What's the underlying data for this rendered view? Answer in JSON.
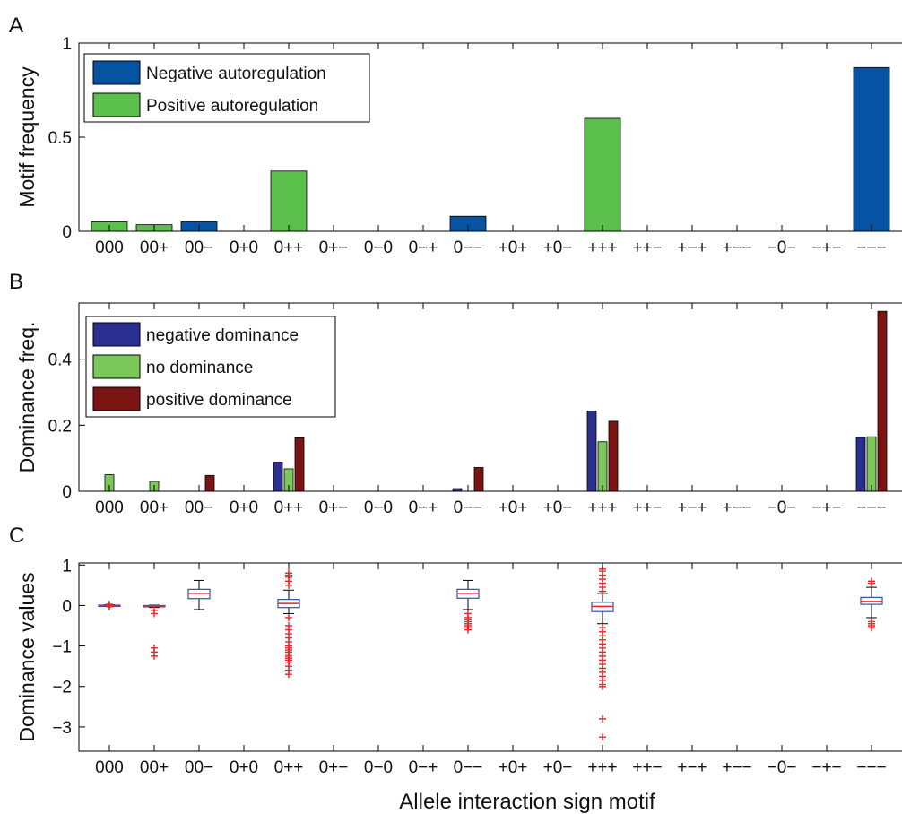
{
  "categories": [
    "000",
    "00+",
    "00−",
    "0+0",
    "0++",
    "0+−",
    "0−0",
    "0−+",
    "0−−",
    "+0+",
    "+0−",
    "+++",
    "++−",
    "+−+",
    "+−−",
    "−0−",
    "−+−",
    "−−−"
  ],
  "chart_data": [
    {
      "panel": "A",
      "type": "bar",
      "ylabel": "Motif frequency",
      "ylim": [
        0,
        1
      ],
      "yticks": [
        0,
        0.5,
        1
      ],
      "ytick_labels": [
        "0",
        "0.5",
        "1"
      ],
      "legend_position": "top-left",
      "series": [
        {
          "name": "Negative autoregulation",
          "color": "#0753a3",
          "values": [
            0,
            0,
            0.05,
            0,
            0,
            0,
            0,
            0,
            0.08,
            0,
            0,
            0,
            0,
            0,
            0,
            0,
            0,
            0.87
          ]
        },
        {
          "name": "Positive autoregulation",
          "color": "#5bbf4b",
          "values": [
            0.05,
            0.035,
            0,
            0,
            0.32,
            0,
            0,
            0,
            0,
            0,
            0,
            0.6,
            0,
            0,
            0,
            0,
            0,
            0
          ]
        }
      ]
    },
    {
      "panel": "B",
      "type": "bar",
      "ylabel": "Dominance freq.",
      "ylim": [
        0,
        0.57
      ],
      "yticks": [
        0,
        0.2,
        0.4
      ],
      "ytick_labels": [
        "0",
        "0.2",
        "0.4"
      ],
      "legend_position": "top-left",
      "series": [
        {
          "name": "negative dominance",
          "color": "#2b2f8f",
          "values": [
            0,
            0,
            0,
            0,
            0.088,
            0,
            0,
            0,
            0.008,
            0,
            0,
            0.243,
            0,
            0,
            0,
            0,
            0,
            0.163
          ]
        },
        {
          "name": "no dominance",
          "color": "#7cc75a",
          "values": [
            0.05,
            0.03,
            0,
            0,
            0.068,
            0,
            0,
            0,
            0,
            0,
            0,
            0.15,
            0,
            0,
            0,
            0,
            0,
            0.165
          ]
        },
        {
          "name": "positive dominance",
          "color": "#7d1414",
          "values": [
            0,
            0,
            0.048,
            0,
            0.162,
            0,
            0,
            0,
            0.072,
            0,
            0,
            0.212,
            0,
            0,
            0,
            0,
            0,
            0.545
          ]
        }
      ]
    },
    {
      "panel": "C",
      "type": "box",
      "ylabel": "Dominance values",
      "xlabel": "Allele interaction sign motif",
      "ylim": [
        -3.6,
        1.05
      ],
      "yticks": [
        1,
        0,
        -1,
        -2,
        -3
      ],
      "ytick_labels": [
        "1",
        "0",
        "−1",
        "−2",
        "−3"
      ],
      "boxes": [
        {
          "index": 0,
          "q1": -0.01,
          "median": 0,
          "q3": 0.01,
          "whisker_low": -0.02,
          "whisker_high": 0.02,
          "outliers": [
            -0.03,
            -0.02,
            0.02,
            0.03
          ]
        },
        {
          "index": 1,
          "q1": -0.03,
          "median": -0.01,
          "q3": 0.0,
          "whisker_low": -0.05,
          "whisker_high": 0.01,
          "outliers": [
            -0.12,
            -0.2,
            -1.05,
            -1.15,
            -1.25
          ]
        },
        {
          "index": 2,
          "q1": 0.17,
          "median": 0.3,
          "q3": 0.4,
          "whisker_low": -0.1,
          "whisker_high": 0.62,
          "outliers": []
        },
        {
          "index": 4,
          "q1": -0.05,
          "median": 0.05,
          "q3": 0.15,
          "whisker_low": -0.2,
          "whisker_high": 0.38,
          "outliers": [
            0.5,
            0.6,
            0.7,
            0.75,
            0.8,
            -0.3,
            -0.5,
            -0.6,
            -0.7,
            -0.8,
            -0.9,
            -1.0,
            -1.05,
            -1.1,
            -1.15,
            -1.2,
            -1.25,
            -1.3,
            -1.35,
            -1.4,
            -1.5,
            -1.6,
            -1.7
          ]
        },
        {
          "index": 8,
          "q1": 0.18,
          "median": 0.3,
          "q3": 0.4,
          "whisker_low": -0.1,
          "whisker_high": 0.62,
          "outliers": [
            -0.2,
            -0.3,
            -0.35,
            -0.4,
            -0.45,
            -0.5,
            -0.55,
            -0.6
          ]
        },
        {
          "index": 11,
          "q1": -0.15,
          "median": -0.02,
          "q3": 0.08,
          "whisker_low": -0.45,
          "whisker_high": 0.3,
          "outliers": [
            0.35,
            0.45,
            0.55,
            0.65,
            0.75,
            0.85,
            0.9,
            -0.55,
            -0.65,
            -0.75,
            -0.85,
            -0.95,
            -1.05,
            -1.15,
            -1.25,
            -1.35,
            -1.45,
            -1.55,
            -1.65,
            -1.75,
            -1.85,
            -1.95,
            -2.0,
            -2.8,
            -3.25
          ]
        },
        {
          "index": 17,
          "q1": 0.03,
          "median": 0.1,
          "q3": 0.2,
          "whisker_low": -0.3,
          "whisker_high": 0.45,
          "outliers": [
            0.55,
            0.6,
            -0.4,
            -0.45,
            -0.5,
            -0.55
          ]
        }
      ]
    }
  ]
}
